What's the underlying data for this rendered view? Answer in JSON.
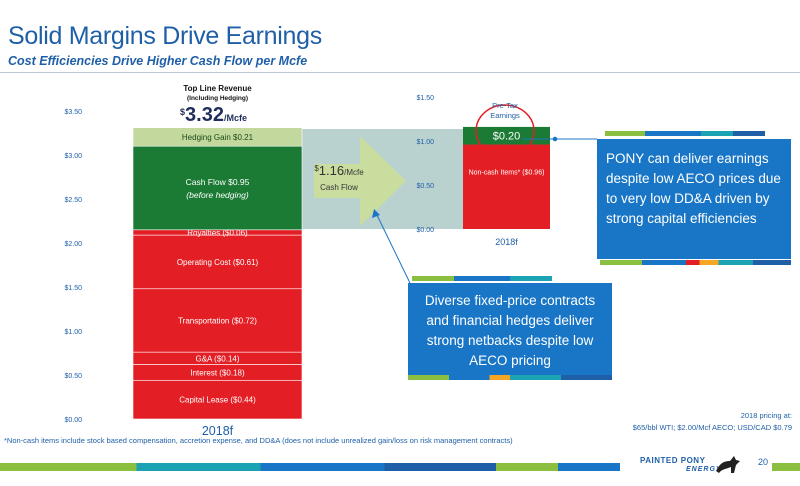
{
  "slide": {
    "title": "Solid Margins Drive Earnings",
    "subtitle": "Cost Efficiencies Drive Higher Cash Flow per Mcfe",
    "page_number": "20",
    "footnote": "*Non-cash items include stock based compensation, accretion expense, and DD&A (does not include unrealized gain/loss on risk management contracts)",
    "pricing_line1": "2018 pricing at:",
    "pricing_line2": "$65/bbl WTI; $2.00/Mcf AECO; USD/CAD $0.79",
    "logo_line1": "PAINTED PONY",
    "logo_line2": "ENERGY",
    "colors": {
      "green": "#1b7a34",
      "light_green": "#c3d89c",
      "red": "#e31e24",
      "blue": "#1976c6",
      "teal_band": "#a9c7c3",
      "title_blue": "#1f5fa8"
    }
  },
  "callouts": {
    "right": "PONY can deliver earnings despite  low AECO prices due to very low DD&A driven by strong capital efficiencies",
    "middle": "Diverse fixed-price contracts and financial hedges deliver strong netbacks despite low AECO pricing"
  },
  "arrow": {
    "value": "1.16",
    "dollar": "$",
    "unit": "/Mcfe",
    "label": "Cash Flow"
  },
  "chart_data": [
    {
      "type": "bar",
      "category": "2018f",
      "header_line1": "Top Line Revenue",
      "header_line2": "(Including Hedging)",
      "total_dollar": "$",
      "total_value": "3.32",
      "total_unit": "/Mcfe",
      "ylim": [
        0,
        3.5
      ],
      "yticks": [
        "$0.00",
        "$0.50",
        "$1.00",
        "$1.50",
        "$2.00",
        "$2.50",
        "$3.00",
        "$3.50"
      ],
      "segments": [
        {
          "label": "Capital Lease  ($0.44)",
          "value": 0.44,
          "color": "#e31e24"
        },
        {
          "label": "Interest  ($0.18)",
          "value": 0.18,
          "color": "#e31e24"
        },
        {
          "label": "G&A  ($0.14)",
          "value": 0.14,
          "color": "#e31e24"
        },
        {
          "label": "Transportation  ($0.72)",
          "value": 0.72,
          "color": "#e31e24"
        },
        {
          "label": "Operating Cost  ($0.61)",
          "value": 0.61,
          "color": "#e31e24"
        },
        {
          "label": "Royalties  ($0.06)",
          "value": 0.06,
          "color": "#e31e24"
        },
        {
          "label": "Cash Flow   $0.95",
          "label2": "(before hedging)",
          "value": 0.95,
          "color": "#1b7a34"
        },
        {
          "label": "Hedging Gain  $0.21",
          "value": 0.21,
          "color": "#c3d89c"
        }
      ]
    },
    {
      "type": "bar",
      "category": "2018f",
      "ylim": [
        0,
        1.5
      ],
      "yticks": [
        "$0.00",
        "$0.50",
        "$1.00",
        "$1.50"
      ],
      "annotation_line1": "Pre-Tax",
      "annotation_line2": "Earnings",
      "segments": [
        {
          "label": "Non-cash Items* ($0.96)",
          "value": 0.96,
          "color": "#e31e24"
        },
        {
          "label": "$0.20",
          "value": 0.2,
          "color": "#1b7a34"
        }
      ]
    }
  ]
}
